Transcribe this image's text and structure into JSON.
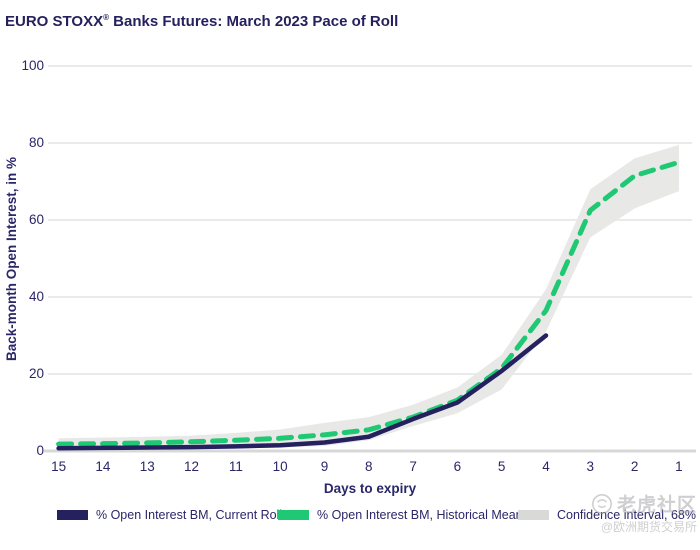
{
  "title": {
    "prefix": "EURO STOXX",
    "reg_mark": "®",
    "suffix": " Banks Futures: March 2023 Pace of Roll"
  },
  "chart_data": {
    "type": "line",
    "x": [
      15,
      14,
      13,
      12,
      11,
      10,
      9,
      8,
      7,
      6,
      5,
      4,
      3,
      2,
      1
    ],
    "xlabel": "Days to expiry",
    "ylabel": "Back-month Open Interest, in %",
    "ylim": [
      0,
      100
    ],
    "yticks": [
      0,
      20,
      40,
      60,
      80,
      100
    ],
    "x_direction": "descending",
    "grid": "horizontal",
    "legend_position": "bottom",
    "series": [
      {
        "name": "% Open Interest BM, Current Roll",
        "color": "#24215e",
        "line_style": "solid",
        "x": [
          15,
          14,
          13,
          12,
          11,
          10,
          9,
          8,
          7,
          6,
          5,
          4
        ],
        "values": [
          0.7,
          0.8,
          0.9,
          1.0,
          1.2,
          1.5,
          2.2,
          3.7,
          8.3,
          12.6,
          20.8,
          30.0
        ]
      },
      {
        "name": "% Open Interest BM, Historical Mean",
        "color": "#1fc873",
        "line_style": "dashed",
        "x": [
          15,
          14,
          13,
          12,
          11,
          10,
          9,
          8,
          7,
          6,
          5,
          4,
          3,
          2,
          1
        ],
        "values": [
          1.8,
          1.9,
          2.1,
          2.4,
          2.8,
          3.3,
          4.2,
          5.5,
          8.8,
          13.2,
          21.5,
          36.5,
          62.5,
          71.5,
          75.0
        ]
      },
      {
        "name": "Confidence interval, 68%",
        "color": "#e8e8e6",
        "band": true,
        "x": [
          15,
          14,
          13,
          12,
          11,
          10,
          9,
          8,
          7,
          6,
          5,
          4,
          3,
          2,
          1
        ],
        "upper": [
          3.3,
          3.5,
          3.7,
          4.0,
          4.7,
          5.6,
          7.3,
          8.8,
          12.0,
          16.5,
          25.0,
          42.0,
          68.0,
          76.0,
          79.5
        ],
        "lower": [
          0.4,
          0.4,
          0.5,
          0.6,
          0.7,
          0.9,
          1.3,
          2.8,
          6.5,
          9.8,
          16.0,
          31.0,
          55.5,
          63.0,
          67.5
        ]
      }
    ]
  },
  "legend": {
    "items": [
      {
        "label": "% Open Interest BM, Current Roll",
        "color": "#24215e",
        "shape": "rect"
      },
      {
        "label": "% Open Interest BM, Historical Mean",
        "color": "#1fc873",
        "shape": "rect"
      },
      {
        "label": "Confidence interval, 68%",
        "color": "#d9d9d7",
        "shape": "rect"
      }
    ]
  },
  "watermark": {
    "community": "老虎社区",
    "account": "@欧洲期货交易所"
  },
  "colors": {
    "title_text": "#24215e",
    "axis_text": "#2a2768",
    "gridline": "#e4e4e4",
    "axis_line": "#d8d8d8",
    "band_fill": "#e8e8e6"
  }
}
